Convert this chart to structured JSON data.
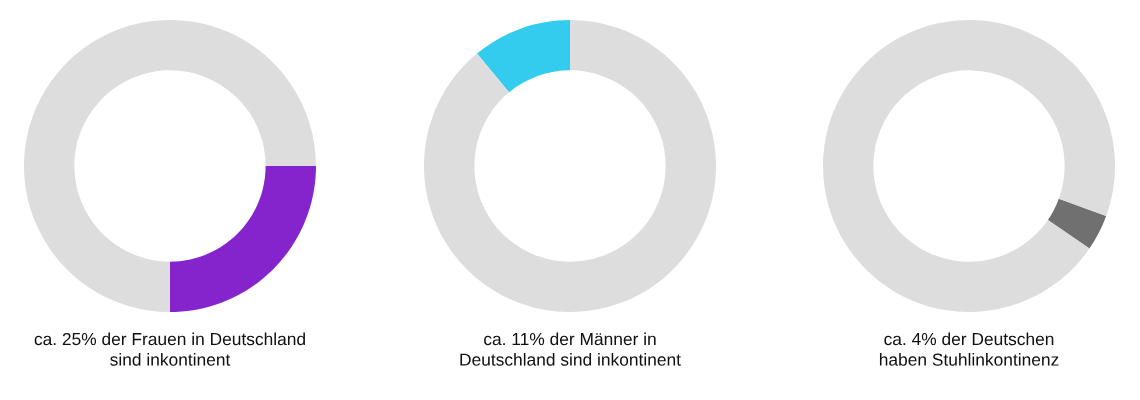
{
  "chart_data": [
    {
      "type": "donut",
      "title": "ca. 25% der Frauen in Deutschland\nsind inkontinent",
      "categories": [
        null,
        null
      ],
      "values": [
        25,
        75
      ],
      "colors": [
        "#8523cc",
        "#dddddd"
      ]
    },
    {
      "type": "donut",
      "title": "ca. 11% der Männer in\nDeutschland sind inkontinent",
      "categories": [
        null,
        null
      ],
      "values": [
        11,
        89
      ],
      "colors": [
        "#33ccee",
        "#dddddd"
      ]
    },
    {
      "type": "donut",
      "title": "ca. 4% der Deutschen\nhaben Stuhlinkontinenz",
      "categories": [
        null,
        null
      ],
      "values": [
        4,
        96
      ],
      "colors": [
        "#707070",
        "#dddddd"
      ]
    }
  ]
}
